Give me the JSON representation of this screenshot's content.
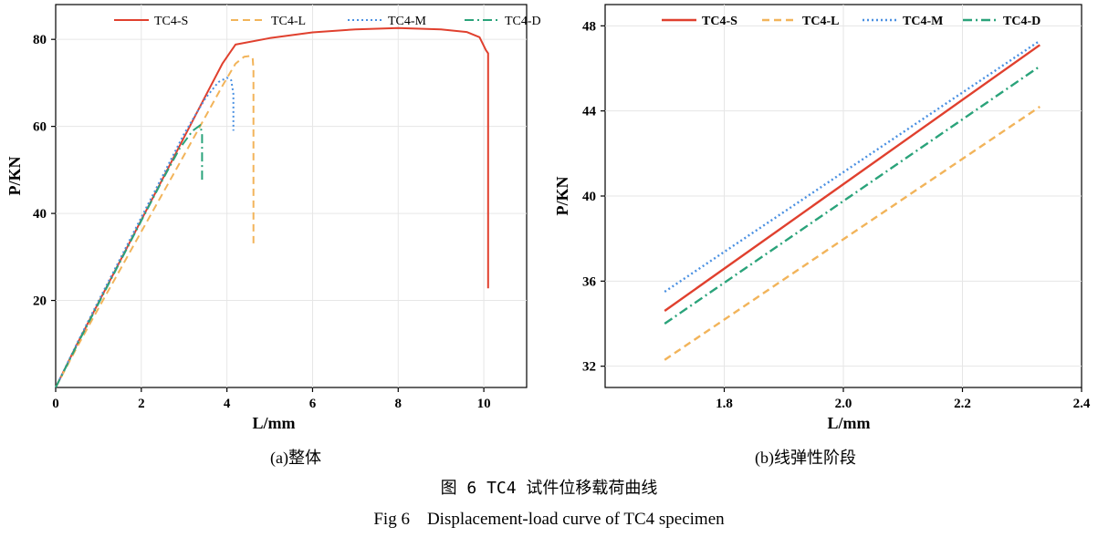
{
  "figure": {
    "caption_cn": "图 6 TC4 试件位移载荷曲线",
    "caption_en": "Fig 6    Displacement-load curve of TC4 specimen"
  },
  "colors": {
    "TC4-S": "#e0402e",
    "TC4-L": "#f2b45a",
    "TC4-M": "#4a90e2",
    "TC4-D": "#2aa37a"
  },
  "chart_data": [
    {
      "type": "line",
      "panel": "a",
      "subcaption": "(a)整体",
      "xlabel": "L/mm",
      "ylabel": "P/KN",
      "xlim": [
        0,
        11
      ],
      "ylim": [
        0,
        88
      ],
      "xticks": [
        0,
        2,
        4,
        6,
        8,
        10
      ],
      "yticks": [
        20,
        40,
        60,
        80
      ],
      "legend": "top",
      "series": [
        {
          "name": "TC4-S",
          "style": "solid",
          "x": [
            0,
            0.5,
            1,
            1.5,
            2,
            2.5,
            3,
            3.5,
            3.9,
            4.2,
            5,
            6,
            7,
            8,
            9,
            9.6,
            9.9,
            10.05,
            10.1,
            10.1
          ],
          "y": [
            0,
            10,
            19.5,
            29,
            38.5,
            48,
            57.5,
            67,
            74.5,
            78.8,
            80.3,
            81.6,
            82.3,
            82.6,
            82.3,
            81.7,
            80.5,
            77.5,
            76.8,
            22.8
          ]
        },
        {
          "name": "TC4-L",
          "style": "dashed",
          "x": [
            0,
            0.5,
            1,
            1.5,
            2,
            2.5,
            3,
            3.5,
            3.9,
            4.2,
            4.4,
            4.55,
            4.6,
            4.62,
            4.62
          ],
          "y": [
            0,
            9.3,
            18.2,
            27,
            35.8,
            44.6,
            53.4,
            62.3,
            69.4,
            74.4,
            76,
            76.2,
            75.8,
            73,
            32.5
          ]
        },
        {
          "name": "TC4-M",
          "style": "dotted",
          "x": [
            0,
            0.5,
            1,
            1.5,
            2,
            2.5,
            3,
            3.5,
            3.8,
            4.0,
            4.1,
            4.15,
            4.15
          ],
          "y": [
            0,
            10.2,
            19.9,
            29.5,
            39.1,
            48.7,
            58.3,
            66.5,
            70.2,
            71.2,
            70.6,
            67.5,
            59
          ]
        },
        {
          "name": "TC4-D",
          "style": "dashdot",
          "x": [
            0,
            0.5,
            1,
            1.5,
            2,
            2.5,
            2.9,
            3.2,
            3.38,
            3.42,
            3.42
          ],
          "y": [
            0,
            9.8,
            19.3,
            28.8,
            38.3,
            47.8,
            55,
            59,
            60.3,
            58,
            47
          ]
        }
      ]
    },
    {
      "type": "line",
      "panel": "b",
      "subcaption": "(b)线弹性阶段",
      "xlabel": "L/mm",
      "ylabel": "P/KN",
      "xlim": [
        1.6,
        2.4
      ],
      "ylim": [
        31,
        49
      ],
      "xticks": [
        1.8,
        2.0,
        2.2,
        2.4
      ],
      "yticks": [
        32,
        36,
        40,
        44,
        48
      ],
      "legend": "top",
      "series": [
        {
          "name": "TC4-S",
          "style": "solid",
          "x": [
            1.7,
            2.33
          ],
          "y": [
            34.6,
            47.1
          ]
        },
        {
          "name": "TC4-L",
          "style": "dashed",
          "x": [
            1.7,
            2.33
          ],
          "y": [
            32.3,
            44.2
          ]
        },
        {
          "name": "TC4-M",
          "style": "dotted",
          "x": [
            1.7,
            2.33
          ],
          "y": [
            35.5,
            47.3
          ]
        },
        {
          "name": "TC4-D",
          "style": "dashdot",
          "x": [
            1.7,
            2.33
          ],
          "y": [
            34.0,
            46.1
          ]
        }
      ]
    }
  ]
}
